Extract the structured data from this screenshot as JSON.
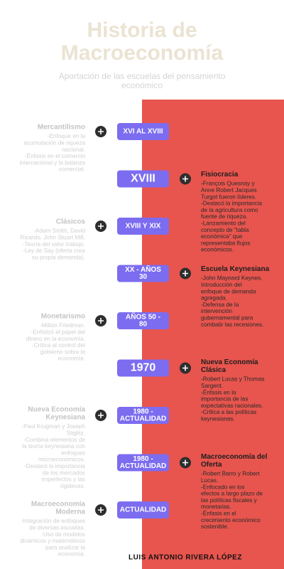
{
  "header": {
    "title": [
      "Historia de",
      "Macroeconomía"
    ],
    "subtitle": [
      "Aportación de las escuelas del pensamiento",
      "económico"
    ]
  },
  "items": [
    {
      "period": [
        "XVI AL XVIII"
      ],
      "title": [
        "Mercantilismo"
      ],
      "body": [
        "-Enfoque en la",
        "acumulación de riqueza",
        "nacional.",
        "-Énfasis en el comercio",
        "internacional y la balanza",
        "comercial."
      ]
    },
    {
      "period": [
        "XVIII"
      ],
      "title": [
        "Fisiocracia"
      ],
      "body": [
        "-François Quesnay y",
        "Anne Robert Jacques",
        "Turgot fueron líderes.",
        "-Destacó la importancia",
        "de la agricultura como",
        "fuente de riqueza.",
        "-Lanzamiento del",
        "concepto de \"tabla",
        "económica\" que",
        "representaba flujos",
        "económicos."
      ]
    },
    {
      "period": [
        "XVIII Y XIX"
      ],
      "title": [
        "Clásicos"
      ],
      "body": [
        "-Adam Smith, David",
        "Ricardo, John Stuart Mill.",
        "-Teoría del valor trabajo.",
        "-Ley de Say (oferta crea",
        "su propia demanda)."
      ]
    },
    {
      "period": [
        "XX - AÑOS",
        "30"
      ],
      "title": [
        "Escuela Keynesiana"
      ],
      "body": [
        "-John Maynard Keynes.",
        "Introducción del",
        "enfoque de demanda",
        "agregada.",
        "-Defensa de la",
        "intervención",
        "gubernamental para",
        "combatir las recesiones."
      ]
    },
    {
      "period": [
        "AÑOS 50 -",
        "80"
      ],
      "title": [
        "Monetarismo"
      ],
      "body": [
        "-Milton Friedman.",
        "-Enfatizó el papel del",
        "dinero en la economía.",
        "-Crítica al control del",
        "gobierno sobre la",
        "economía."
      ]
    },
    {
      "period": [
        "1970"
      ],
      "title": [
        "Nueva Economía",
        "Clásica"
      ],
      "body": [
        "-Robert Lucas y Thomas",
        "Sargent.",
        "-Énfasis en la",
        "importancia de las",
        "expectativas racionales.",
        "-Crítica a las políticas",
        "keynesianas."
      ]
    },
    {
      "period": [
        "1980 -",
        "ACTUALIDAD"
      ],
      "title": [
        "Nueva Economía",
        "Keynesiana"
      ],
      "body": [
        "-Paul Krugman y Joseph",
        "Stiglitz.",
        "-Combina elementos de",
        "la teoría keynesiana con",
        "enfoques",
        "microeconómicos.",
        "-Destacó la importancia",
        "de los mercados",
        "imperfectos y las",
        "rigideces."
      ]
    },
    {
      "period": [
        "1980 -",
        "ACTUALIDAD"
      ],
      "title": [
        "Macroeconomía del",
        "Oferta"
      ],
      "body": [
        "-Robert Barro y Robert",
        "Lucas.",
        "-Enfocado en los",
        "efectos a largo plazo de",
        "las políticas fiscales y",
        "monetarias.",
        "-Énfasis en el",
        "crecimiento económico",
        "sostenible."
      ]
    },
    {
      "period": [
        "ACTUALIDAD"
      ],
      "title": [
        "Macroeconomía",
        "Moderna"
      ],
      "body": [
        "-Integración de enfoques",
        "de diversas escuelas.",
        "-Uso de modelos",
        "dinámicos y matemáticos",
        "para analizar la",
        "economía."
      ]
    }
  ],
  "footer": {
    "author": "LUIS ANTONIO RIVERA LÓPEZ"
  }
}
